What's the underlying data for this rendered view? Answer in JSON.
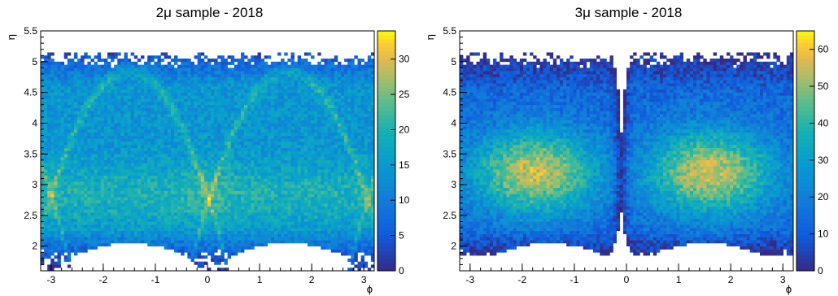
{
  "chart_data": [
    {
      "type": "heatmap",
      "title": "2μ sample - 2018",
      "xlabel": "ϕ",
      "ylabel": "η",
      "xlim": [
        -3.2,
        3.2
      ],
      "ylim": [
        1.6,
        5.5
      ],
      "x_ticks": [
        "-3",
        "-2",
        "-1",
        "0",
        "1",
        "2",
        "3"
      ],
      "y_ticks": [
        "2",
        "2.5",
        "3",
        "3.5",
        "4",
        "4.5",
        "5",
        "5.5"
      ],
      "z_range": [
        0,
        34
      ],
      "z_ticks": [
        "0",
        "5",
        "10",
        "15",
        "20",
        "25",
        "30"
      ],
      "colormap": "parula",
      "notes": "Occupancy map with two parabolic high-density arcs peaking near phi=-1.5 and phi=1.5; empty arches below eta~2 around phi=-1.5 and phi=1.5; broad high density near eta 2.5-3.2 in the centre region"
    },
    {
      "type": "heatmap",
      "title": "3μ sample - 2018",
      "xlabel": "ϕ",
      "ylabel": "η",
      "xlim": [
        -3.2,
        3.2
      ],
      "ylim": [
        1.6,
        5.5
      ],
      "x_ticks": [
        "-3",
        "-2",
        "-1",
        "0",
        "1",
        "2",
        "3"
      ],
      "y_ticks": [
        "2",
        "2.5",
        "3",
        "3.5",
        "4",
        "4.5",
        "5",
        "5.5"
      ],
      "z_range": [
        0,
        65
      ],
      "z_ticks": [
        "0",
        "10",
        "20",
        "30",
        "40",
        "50",
        "60"
      ],
      "colormap": "parula",
      "notes": "Two dome-shaped high-density lobes centred near phi=-1.7 and phi=1.6 at eta~3.2; low-density vertical gap near phi=-0.1; empty arches below eta~2 around phi=-1.5 and phi=1.5"
    }
  ]
}
